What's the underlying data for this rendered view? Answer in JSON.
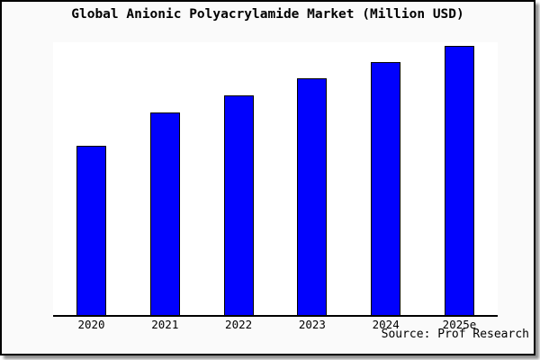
{
  "page": {
    "title": "Global Anionic Polyacrylamide Market (Million USD)",
    "source": "Source: Prof Research"
  },
  "colors": {
    "page_background": "#fafafa",
    "plot_background": "#ffffff",
    "bar_fill": "#0101fd",
    "bar_border": "#000000",
    "axis": "#000000",
    "text": "#000000"
  },
  "chart_data": {
    "type": "bar",
    "title": "Global Anionic Polyacrylamide Market (Million USD)",
    "categories": [
      "2020",
      "2021",
      "2022",
      "2023",
      "2024",
      "2025e"
    ],
    "values": [
      62.9,
      75.3,
      81.6,
      88.0,
      94.0,
      100.0
    ],
    "values_note": "no numeric y-axis or data labels shown in chart; values estimated from bar heights as percent of the 2025e bar",
    "xlabel": "",
    "ylabel": "",
    "ylim": [
      0,
      101.3
    ],
    "y_axis_visible": false,
    "gridlines": false,
    "legend": null,
    "source": "Source: Prof Research"
  }
}
